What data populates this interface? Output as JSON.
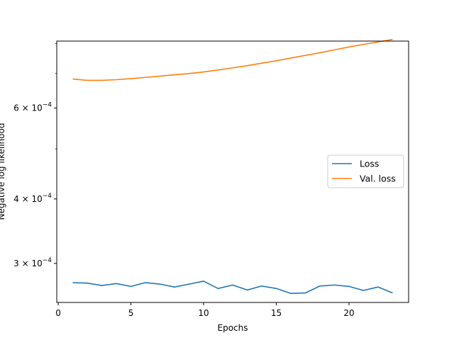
{
  "chart_data": {
    "type": "line",
    "title": "",
    "xlabel": "Epochs",
    "ylabel": "Negative log likelihood",
    "yscale": "log",
    "xlim": [
      -0.1,
      24.1
    ],
    "ylim": [
      0.000252,
      0.000809
    ],
    "x_ticks": [
      0,
      5,
      10,
      15,
      20
    ],
    "y_ticks": [
      {
        "value": 0.0003,
        "base": "3",
        "exp": "−4"
      },
      {
        "value": 0.0004,
        "base": "4",
        "exp": "−4"
      },
      {
        "value": 0.0006,
        "base": "6",
        "exp": "−4"
      }
    ],
    "y_minor_ticks": [
      0.0005,
      0.0007,
      0.0008
    ],
    "grid": false,
    "legend_position": "center-right",
    "series": [
      {
        "name": "Loss",
        "color": "#1f77b4",
        "x": [
          1,
          2,
          3,
          4,
          5,
          6,
          7,
          8,
          9,
          10,
          11,
          12,
          13,
          14,
          15,
          16,
          17,
          18,
          19,
          20,
          21,
          22,
          23
        ],
        "y": [
          0.0002753,
          0.0002747,
          0.0002718,
          0.0002742,
          0.0002707,
          0.0002753,
          0.0002735,
          0.00027,
          0.0002735,
          0.0002771,
          0.0002682,
          0.0002724,
          0.0002664,
          0.0002712,
          0.0002682,
          0.0002624,
          0.0002629,
          0.0002712,
          0.0002724,
          0.0002707,
          0.0002659,
          0.00027,
          0.0002629
        ]
      },
      {
        "name": "Val. loss",
        "color": "#ff7f0e",
        "x": [
          1,
          2,
          3,
          4,
          5,
          6,
          7,
          8,
          9,
          10,
          11,
          12,
          13,
          14,
          15,
          16,
          17,
          18,
          19,
          20,
          21,
          22,
          23
        ],
        "y": [
          0.000683,
          0.000679,
          0.000679,
          0.000681,
          0.000684,
          0.000688,
          0.000692,
          0.000696,
          0.0007,
          0.000705,
          0.000711,
          0.000718,
          0.000725,
          0.000733,
          0.000741,
          0.00075,
          0.000759,
          0.000768,
          0.000778,
          0.000788,
          0.000797,
          0.000806,
          0.000815
        ]
      }
    ]
  }
}
